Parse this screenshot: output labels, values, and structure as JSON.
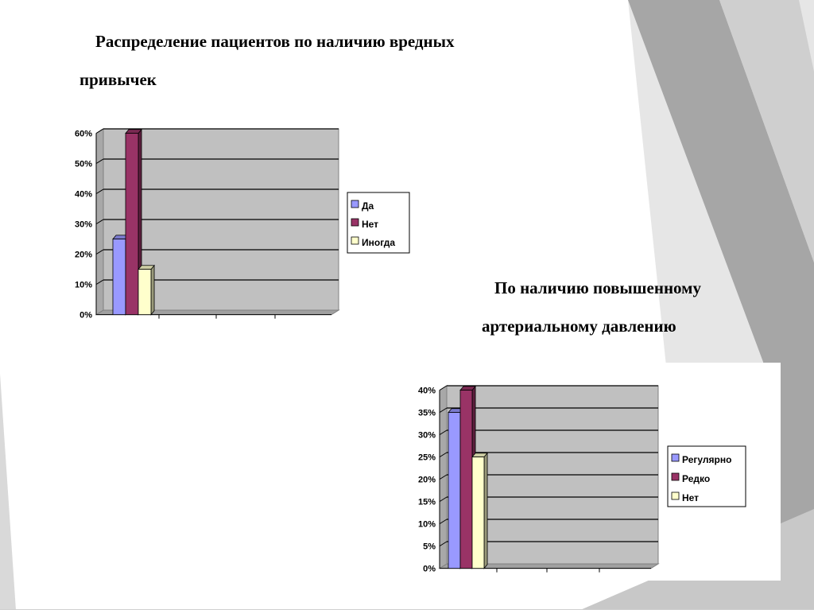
{
  "slide": {
    "title1_line1": "Распределение пациентов по наличию вредных",
    "title1_line2": "привычек",
    "title2_line1": "По наличию повышенному",
    "title2_line2": "артериальному давлению"
  },
  "colors": {
    "plot_bg": "#c0c0c0",
    "bar_blue": "#9999ff",
    "bar_maroon": "#993366",
    "bar_yellow": "#ffffcc",
    "deco_gray_dark": "#a6a6a6",
    "deco_gray_light": "#d9d9d9"
  },
  "chart_data": [
    {
      "type": "bar",
      "title": "",
      "xlabel": "",
      "ylabel": "",
      "ylim": [
        0,
        60
      ],
      "yticks": [
        "0%",
        "10%",
        "20%",
        "30%",
        "40%",
        "50%",
        "60%"
      ],
      "categories": [
        ""
      ],
      "series": [
        {
          "name": "Да",
          "values": [
            25
          ],
          "color": "#9999ff"
        },
        {
          "name": "Нет",
          "values": [
            60
          ],
          "color": "#993366"
        },
        {
          "name": "Иногда",
          "values": [
            15
          ],
          "color": "#ffffcc"
        }
      ],
      "grid": true,
      "legend": "right"
    },
    {
      "type": "bar",
      "title": "",
      "xlabel": "",
      "ylabel": "",
      "ylim": [
        0,
        40
      ],
      "yticks": [
        "0%",
        "5%",
        "10%",
        "15%",
        "20%",
        "25%",
        "30%",
        "35%",
        "40%"
      ],
      "categories": [
        ""
      ],
      "series": [
        {
          "name": "Регулярно",
          "values": [
            35
          ],
          "color": "#9999ff"
        },
        {
          "name": "Редко",
          "values": [
            40
          ],
          "color": "#993366"
        },
        {
          "name": "Нет",
          "values": [
            25
          ],
          "color": "#ffffcc"
        }
      ],
      "grid": true,
      "legend": "right"
    }
  ]
}
